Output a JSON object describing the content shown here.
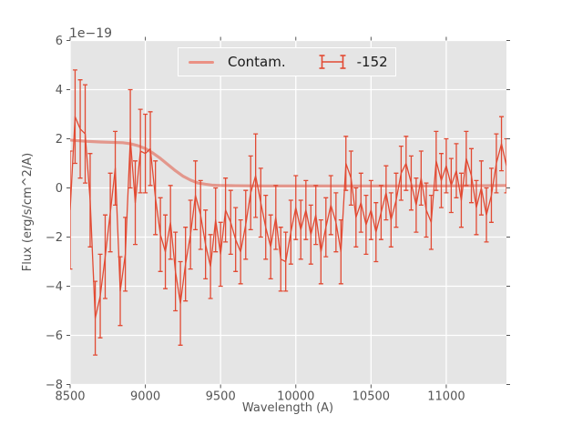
{
  "figure": {
    "plot_bg": "#e5e5e5",
    "grid_color": "#ffffff",
    "tick_color": "#555555",
    "label_color": "#555555",
    "series_color": "#e24a33",
    "contam_color": "#e24a33",
    "contam_opacity": 0.5,
    "legend_face": "#e5e5e5",
    "legend_edge": "#ffffff",
    "legend_text_color": "#1a1a1a"
  },
  "chart_data": {
    "type": "line",
    "title": "",
    "xlabel": "Wavelength (A)",
    "ylabel": "Flux (erg/s/cm^2/A)",
    "offset_text": "1e−19",
    "xlim": [
      8500,
      11400
    ],
    "ylim": [
      -8,
      6
    ],
    "xticks": [
      8500,
      9000,
      9500,
      10000,
      10500,
      11000
    ],
    "yticks": [
      -8,
      -6,
      -4,
      -2,
      0,
      2,
      4,
      6
    ],
    "grid": true,
    "legend_position": "upper center",
    "y_unit_scale": "1e-19 erg/s/cm^2/A",
    "series": [
      {
        "name": "Contam.",
        "style": "thick smooth line",
        "x": [
          8500,
          8600,
          8700,
          8800,
          8850,
          8900,
          8950,
          9000,
          9050,
          9100,
          9150,
          9200,
          9250,
          9300,
          9350,
          9400,
          9450,
          9500,
          9600,
          9800,
          10200,
          10600,
          11000,
          11400
        ],
        "y": [
          1.95,
          1.9,
          1.87,
          1.85,
          1.84,
          1.8,
          1.72,
          1.6,
          1.42,
          1.2,
          0.95,
          0.7,
          0.48,
          0.32,
          0.2,
          0.15,
          0.11,
          0.1,
          0.09,
          0.08,
          0.08,
          0.08,
          0.08,
          0.1
        ]
      },
      {
        "name": "-152",
        "style": "errorbar line",
        "x": [
          8500,
          8533,
          8567,
          8600,
          8633,
          8667,
          8700,
          8733,
          8767,
          8800,
          8833,
          8867,
          8900,
          8933,
          8967,
          9000,
          9033,
          9067,
          9100,
          9133,
          9167,
          9200,
          9233,
          9267,
          9300,
          9333,
          9367,
          9400,
          9433,
          9467,
          9500,
          9533,
          9567,
          9600,
          9633,
          9667,
          9700,
          9733,
          9767,
          9800,
          9833,
          9867,
          9900,
          9933,
          9967,
          10000,
          10033,
          10067,
          10100,
          10133,
          10167,
          10200,
          10233,
          10267,
          10300,
          10333,
          10367,
          10400,
          10433,
          10467,
          10500,
          10533,
          10567,
          10600,
          10633,
          10667,
          10700,
          10733,
          10767,
          10800,
          10833,
          10867,
          10900,
          10933,
          10967,
          11000,
          11033,
          11067,
          11100,
          11133,
          11167,
          11200,
          11233,
          11267,
          11300,
          11333,
          11367,
          11400
        ],
        "y": [
          -0.9,
          2.9,
          2.4,
          2.2,
          -0.5,
          -5.3,
          -4.4,
          -2.8,
          -1.0,
          0.8,
          -4.2,
          -2.7,
          2.0,
          -0.6,
          1.5,
          1.4,
          1.6,
          -0.4,
          -1.9,
          -2.6,
          -1.4,
          -3.4,
          -4.7,
          -3.1,
          -1.9,
          -0.3,
          -1.1,
          -2.3,
          -3.2,
          -1.3,
          -2.7,
          -0.9,
          -1.4,
          -2.1,
          -2.6,
          -1.5,
          -0.2,
          0.5,
          -0.6,
          -1.6,
          -2.4,
          -1.2,
          -2.9,
          -3.0,
          -1.8,
          -0.8,
          -1.7,
          -0.9,
          -1.9,
          -1.1,
          -2.6,
          -1.6,
          -0.7,
          -1.4,
          -2.6,
          1.0,
          0.4,
          -1.2,
          -0.6,
          -1.5,
          -0.9,
          -1.8,
          -1.0,
          -0.2,
          -1.3,
          -0.5,
          0.6,
          1.0,
          0.2,
          -0.7,
          0.4,
          -0.9,
          -1.4,
          1.1,
          0.3,
          0.9,
          0.1,
          0.7,
          -0.5,
          1.2,
          0.5,
          -0.8,
          0.0,
          -1.1,
          -0.3,
          1.0,
          1.8,
          0.9
        ],
        "yerr": [
          2.4,
          1.9,
          2.0,
          2.0,
          1.9,
          1.5,
          1.7,
          1.7,
          1.6,
          1.5,
          1.4,
          1.5,
          2.0,
          1.7,
          1.7,
          1.6,
          1.5,
          1.5,
          1.5,
          1.5,
          1.5,
          1.6,
          1.7,
          1.5,
          1.4,
          1.4,
          1.4,
          1.4,
          1.3,
          1.3,
          1.3,
          1.3,
          1.3,
          1.3,
          1.3,
          1.4,
          1.5,
          1.7,
          1.4,
          1.3,
          1.3,
          1.3,
          1.3,
          1.2,
          1.3,
          1.3,
          1.2,
          1.2,
          1.2,
          1.2,
          1.3,
          1.2,
          1.2,
          1.2,
          1.3,
          1.1,
          1.1,
          1.2,
          1.2,
          1.2,
          1.2,
          1.2,
          1.1,
          1.1,
          1.1,
          1.1,
          1.1,
          1.1,
          1.1,
          1.1,
          1.1,
          1.1,
          1.1,
          1.2,
          1.1,
          1.1,
          1.1,
          1.1,
          1.1,
          1.1,
          1.1,
          1.1,
          1.1,
          1.1,
          1.1,
          1.2,
          1.1,
          1.1
        ]
      }
    ]
  }
}
